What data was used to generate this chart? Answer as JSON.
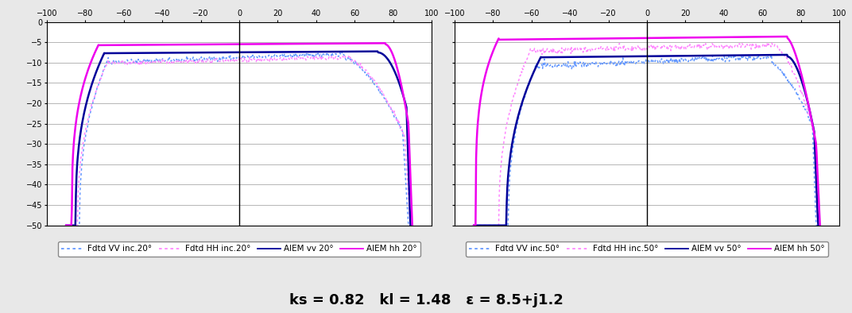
{
  "title_bottom": "ks = 0.82   kl = 1.48   ε = 8.5+j1.2",
  "xlim": [
    -100,
    100
  ],
  "ylim_bottom": -50,
  "ylim_top": 0,
  "yticks": [
    0,
    -5,
    -10,
    -15,
    -20,
    -25,
    -30,
    -35,
    -40,
    -45,
    -50
  ],
  "xticks": [
    -100,
    -80,
    -60,
    -40,
    -20,
    0,
    20,
    40,
    60,
    80,
    100
  ],
  "color_fdtd_vv": "#6699FF",
  "color_fdtd_hh": "#FF88FF",
  "color_aiem_vv": "#000099",
  "color_aiem_hh": "#EE00EE",
  "legend1": [
    "Fdtd VV inc.20°",
    "Fdtd HH inc.20°",
    "AIEM vv 20°",
    "AIEM hh 20°"
  ],
  "legend2": [
    "Fdtd VV inc.50°",
    "Fdtd HH inc.50°",
    "AIEM vv 50°",
    "AIEM hh 50°"
  ],
  "bg_color": "#E8E8E8",
  "plot_bg": "#FFFFFF"
}
